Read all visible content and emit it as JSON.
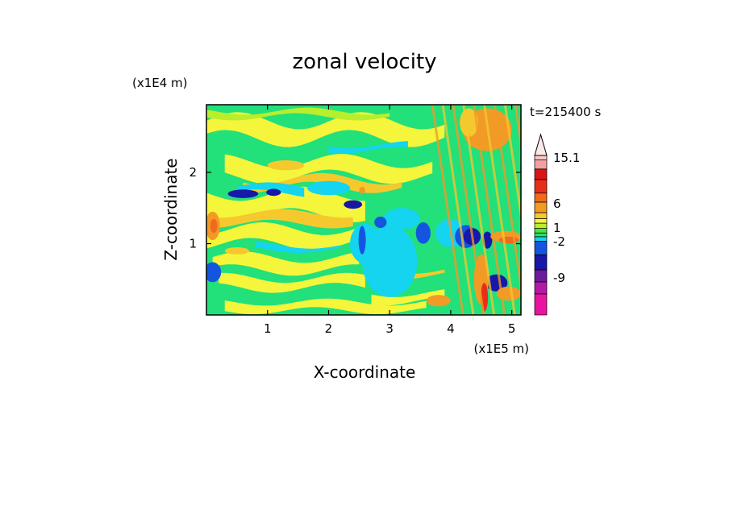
{
  "chart_data": {
    "type": "heatmap",
    "title": "zonal velocity",
    "xlabel": "X-coordinate",
    "ylabel": "Z-coordinate",
    "x_unit": "(x1E5 m)",
    "y_unit": "(x1E4 m)",
    "time_label": "t=215400 s",
    "xlim": [
      0,
      5.15
    ],
    "ylim": [
      0,
      2.95
    ],
    "x_ticks": [
      "1",
      "2",
      "3",
      "4",
      "5"
    ],
    "x_tick_values": [
      1,
      2,
      3,
      4,
      5
    ],
    "y_ticks": [
      "1",
      "2"
    ],
    "y_tick_values": [
      1,
      2
    ],
    "colorbar": {
      "labels": [
        "15.1",
        "6",
        "1",
        "-2",
        "-9"
      ],
      "label_values": [
        15.1,
        6,
        1,
        -2,
        -9
      ],
      "colors": [
        "#e8139e",
        "#b319a6",
        "#6c1a9e",
        "#1717a8",
        "#1455e0",
        "#14d4f0",
        "#22e07a",
        "#46e83a",
        "#b8ee2c",
        "#f5f53c",
        "#f5c92d",
        "#f29a26",
        "#f06a1e",
        "#e82e1a",
        "#d91517",
        "#f2a0a0",
        "#f7c6c6"
      ],
      "extend_top": true
    }
  }
}
